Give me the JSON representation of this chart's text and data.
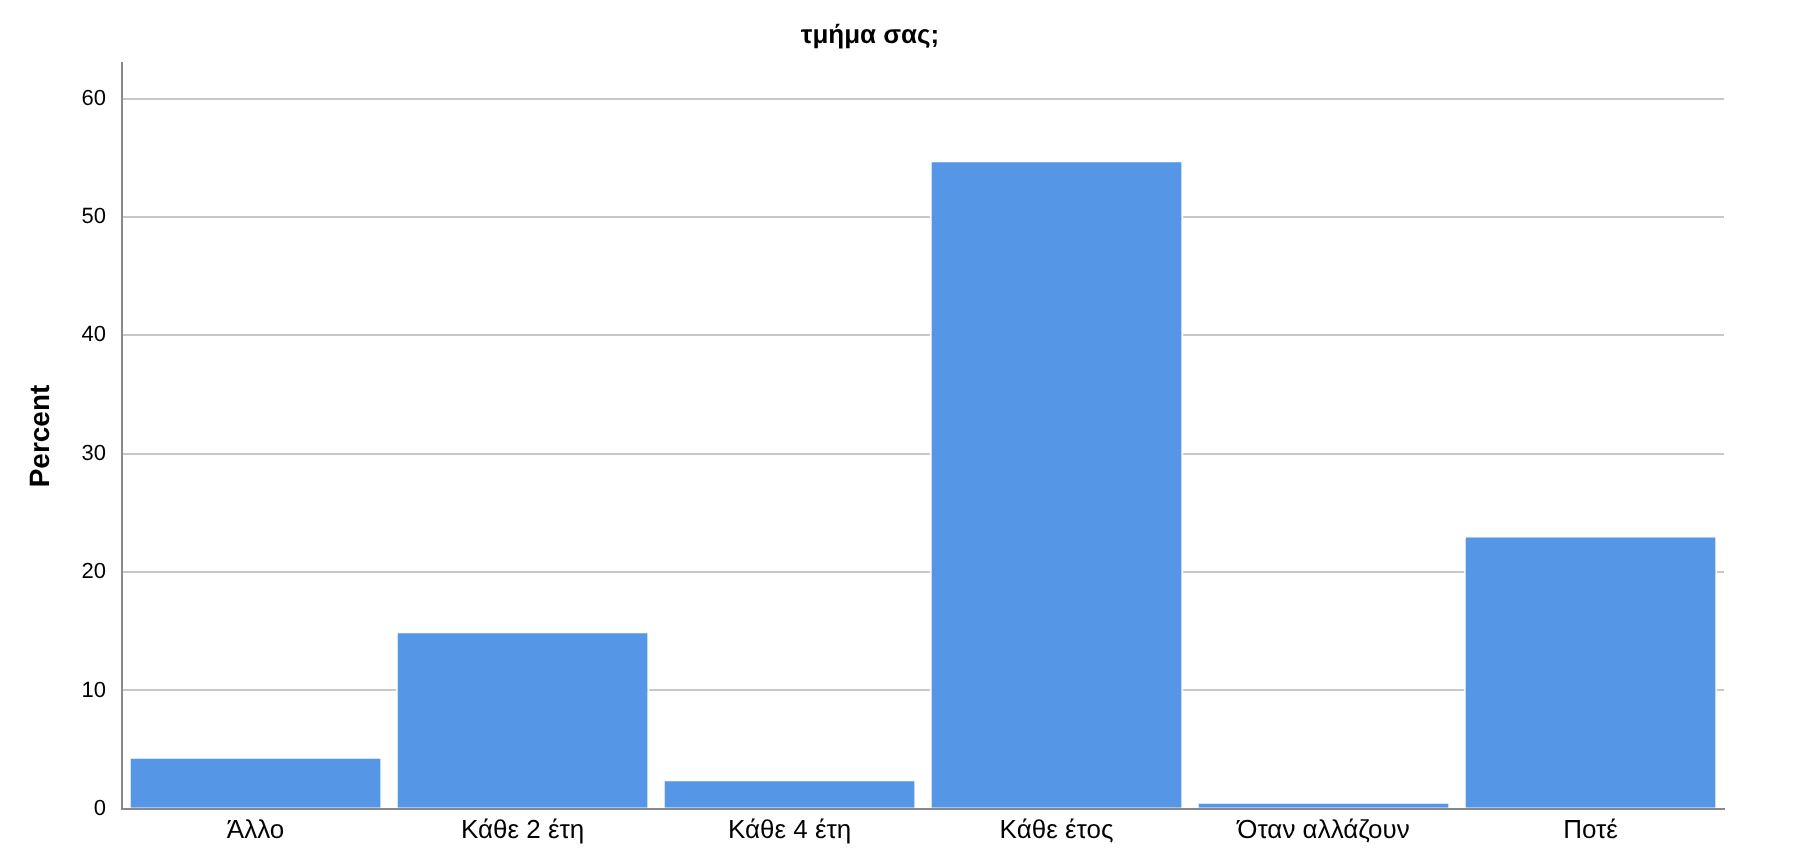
{
  "chart_data": {
    "type": "bar",
    "title": "τμήμα σας;",
    "ylabel": "Percent",
    "categories": [
      "Άλλο",
      "Κάθε 2 έτη",
      "Κάθε 4 έτη",
      "Κάθε έτος",
      "Όταν αλλάζουν",
      "Ποτέ"
    ],
    "values": [
      4.4,
      15.0,
      2.5,
      54.8,
      0.6,
      23.1
    ],
    "color": "#5596e6",
    "ylim": [
      0,
      63
    ],
    "yticks": [
      0,
      10,
      20,
      30,
      40,
      50,
      60
    ],
    "grid": "y",
    "legend": false
  }
}
